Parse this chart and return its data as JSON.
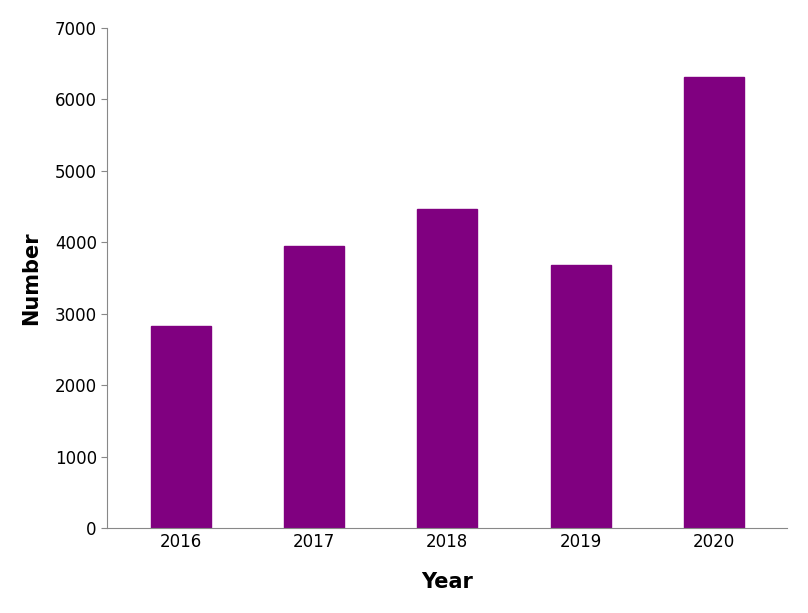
{
  "categories": [
    "2016",
    "2017",
    "2018",
    "2019",
    "2020"
  ],
  "values": [
    2830,
    3946,
    4460,
    3685,
    6306
  ],
  "bar_color": "#800080",
  "xlabel": "Year",
  "ylabel": "Number",
  "ylim": [
    0,
    7000
  ],
  "yticks": [
    0,
    1000,
    2000,
    3000,
    4000,
    5000,
    6000,
    7000
  ],
  "background_color": "#ffffff",
  "bar_width": 0.45,
  "xlabel_fontsize": 15,
  "ylabel_fontsize": 15,
  "tick_fontsize": 12,
  "xlabel_fontweight": "bold",
  "ylabel_fontweight": "bold",
  "spine_color": "#888888"
}
